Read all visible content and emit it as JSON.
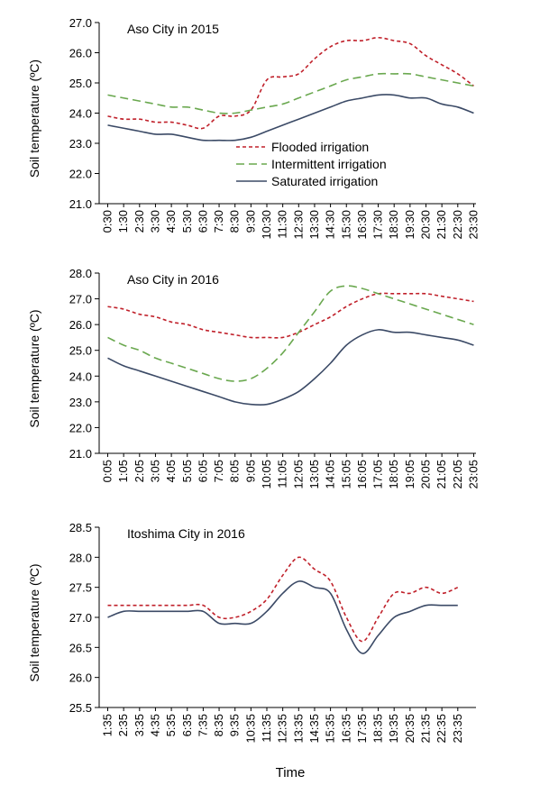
{
  "figure": {
    "x_axis_title": "Time"
  },
  "chart_data": [
    {
      "type": "line",
      "title": "Aso City in 2015",
      "ylabel": "Soil temperature (ºC)",
      "xlabel": "",
      "ylim": [
        21.0,
        27.0
      ],
      "yticks": [
        "21.0",
        "22.0",
        "23.0",
        "24.0",
        "25.0",
        "26.0",
        "27.0"
      ],
      "legend_position": "center-right",
      "categories": [
        "0:30",
        "1:30",
        "2:30",
        "3:30",
        "4:30",
        "5:30",
        "6:30",
        "7:30",
        "8:30",
        "9:30",
        "10:30",
        "11:30",
        "12:30",
        "13:30",
        "14:30",
        "15:30",
        "16:30",
        "17:30",
        "18:30",
        "19:30",
        "20:30",
        "21:30",
        "22:30",
        "23:30"
      ],
      "series": [
        {
          "name": "Flooded irrigation",
          "color": "#c0202a",
          "dash": "4,3",
          "values": [
            23.9,
            23.8,
            23.8,
            23.7,
            23.7,
            23.6,
            23.5,
            23.9,
            23.9,
            24.1,
            25.1,
            25.2,
            25.3,
            25.8,
            26.2,
            26.4,
            26.4,
            26.5,
            26.4,
            26.3,
            25.9,
            25.6,
            25.3,
            24.9
          ]
        },
        {
          "name": "Intermittent irrigation",
          "color": "#6aa84f",
          "dash": "9,5",
          "values": [
            24.6,
            24.5,
            24.4,
            24.3,
            24.2,
            24.2,
            24.1,
            24.0,
            24.0,
            24.1,
            24.2,
            24.3,
            24.5,
            24.7,
            24.9,
            25.1,
            25.2,
            25.3,
            25.3,
            25.3,
            25.2,
            25.1,
            25.0,
            24.9
          ]
        },
        {
          "name": "Saturated irrigation",
          "color": "#3b4a66",
          "dash": "",
          "values": [
            23.6,
            23.5,
            23.4,
            23.3,
            23.3,
            23.2,
            23.1,
            23.1,
            23.1,
            23.2,
            23.4,
            23.6,
            23.8,
            24.0,
            24.2,
            24.4,
            24.5,
            24.6,
            24.6,
            24.5,
            24.5,
            24.3,
            24.2,
            24.0
          ]
        }
      ]
    },
    {
      "type": "line",
      "title": "Aso City in 2016",
      "ylabel": "Soil temperature (ºC)",
      "xlabel": "",
      "ylim": [
        21.0,
        28.0
      ],
      "yticks": [
        "21.0",
        "22.0",
        "23.0",
        "24.0",
        "25.0",
        "26.0",
        "27.0",
        "28.0"
      ],
      "categories": [
        "0:05",
        "1:05",
        "2:05",
        "3:05",
        "4:05",
        "5:05",
        "6:05",
        "7:05",
        "8:05",
        "9:05",
        "10:05",
        "11:05",
        "12:05",
        "13:05",
        "14:05",
        "15:05",
        "16:05",
        "17:05",
        "18:05",
        "19:05",
        "20:05",
        "21:05",
        "22:05",
        "23:05"
      ],
      "series": [
        {
          "name": "Flooded irrigation",
          "color": "#c0202a",
          "dash": "4,3",
          "values": [
            26.7,
            26.6,
            26.4,
            26.3,
            26.1,
            26.0,
            25.8,
            25.7,
            25.6,
            25.5,
            25.5,
            25.5,
            25.7,
            26.0,
            26.3,
            26.7,
            27.0,
            27.2,
            27.2,
            27.2,
            27.2,
            27.1,
            27.0,
            26.9
          ]
        },
        {
          "name": "Intermittent irrigation",
          "color": "#6aa84f",
          "dash": "9,5",
          "values": [
            25.5,
            25.2,
            25.0,
            24.7,
            24.5,
            24.3,
            24.1,
            23.9,
            23.8,
            23.9,
            24.3,
            24.9,
            25.7,
            26.5,
            27.3,
            27.5,
            27.4,
            27.2,
            27.0,
            26.8,
            26.6,
            26.4,
            26.2,
            26.0
          ]
        },
        {
          "name": "Saturated irrigation",
          "color": "#3b4a66",
          "dash": "",
          "values": [
            24.7,
            24.4,
            24.2,
            24.0,
            23.8,
            23.6,
            23.4,
            23.2,
            23.0,
            22.9,
            22.9,
            23.1,
            23.4,
            23.9,
            24.5,
            25.2,
            25.6,
            25.8,
            25.7,
            25.7,
            25.6,
            25.5,
            25.4,
            25.2
          ]
        }
      ]
    },
    {
      "type": "line",
      "title": "Itoshima City in 2016",
      "ylabel": "Soil temperature (ºC)",
      "xlabel": "",
      "ylim": [
        25.5,
        28.5
      ],
      "yticks": [
        "25.5",
        "26.0",
        "26.5",
        "27.0",
        "27.5",
        "28.0",
        "28.5"
      ],
      "categories": [
        "1:35",
        "2:35",
        "3:35",
        "4:35",
        "5:35",
        "6:35",
        "7:35",
        "8:35",
        "9:35",
        "10:35",
        "11:35",
        "12:35",
        "13:35",
        "14:35",
        "15:35",
        "16:35",
        "17:35",
        "18:35",
        "19:35",
        "20:35",
        "21:35",
        "22:35",
        "23:35"
      ],
      "series": [
        {
          "name": "Flooded irrigation",
          "color": "#c0202a",
          "dash": "4,3",
          "values": [
            27.2,
            27.2,
            27.2,
            27.2,
            27.2,
            27.2,
            27.2,
            27.0,
            27.0,
            27.1,
            27.3,
            27.7,
            28.0,
            27.8,
            27.6,
            27.0,
            26.6,
            27.0,
            27.4,
            27.4,
            27.5,
            27.4,
            27.5
          ]
        },
        {
          "name": "Saturated irrigation",
          "color": "#3b4a66",
          "dash": "",
          "values": [
            27.0,
            27.1,
            27.1,
            27.1,
            27.1,
            27.1,
            27.1,
            26.9,
            26.9,
            26.9,
            27.1,
            27.4,
            27.6,
            27.5,
            27.4,
            26.8,
            26.4,
            26.7,
            27.0,
            27.1,
            27.2,
            27.2,
            27.2
          ]
        }
      ]
    }
  ]
}
